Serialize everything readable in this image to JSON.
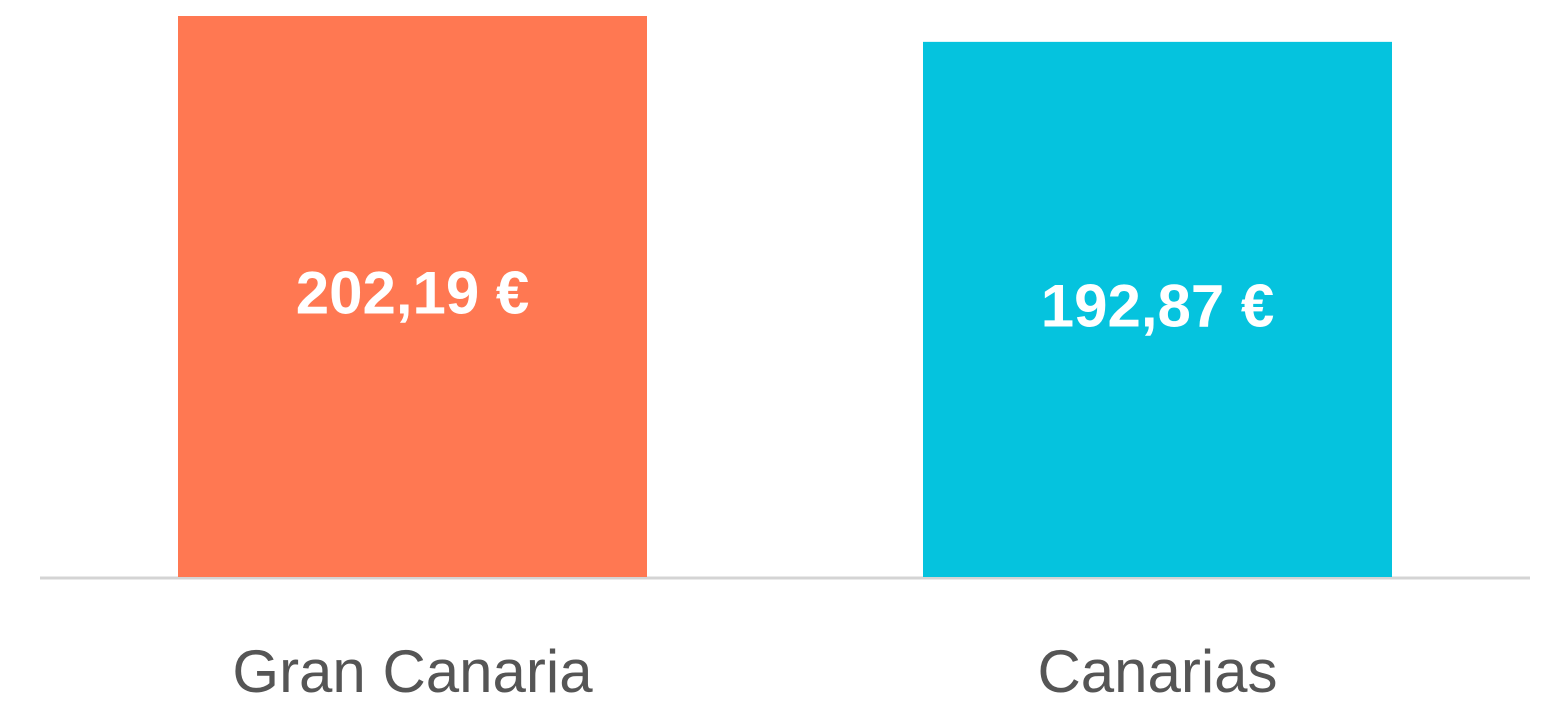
{
  "chart_data": {
    "type": "bar",
    "categories": [
      "Gran Canaria",
      "Canarias"
    ],
    "values": [
      202.19,
      192.87
    ],
    "value_labels": [
      "202,19 €",
      "192,87 €"
    ],
    "colors": [
      "#ff7852",
      "#05c3de"
    ],
    "grid": false
  }
}
